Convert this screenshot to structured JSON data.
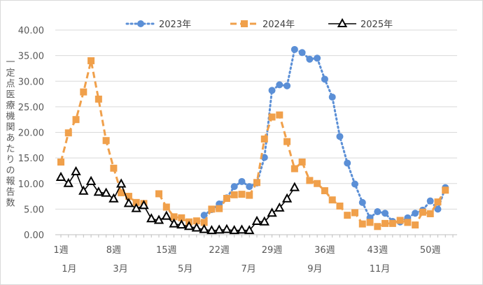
{
  "chart_data": {
    "type": "line",
    "title": "",
    "ylabel": "一定点医療機関あたりの報告数",
    "xlabel": "",
    "ylim": [
      0,
      40
    ],
    "yticks": [
      "0.00",
      "5.00",
      "10.00",
      "15.00",
      "20.00",
      "25.00",
      "30.00",
      "35.00",
      "40.00"
    ],
    "ytick_values": [
      0,
      5,
      10,
      15,
      20,
      25,
      30,
      35,
      40
    ],
    "x_range": [
      1,
      53
    ],
    "week_ticks": [
      {
        "week": 1,
        "label": "1週"
      },
      {
        "week": 8,
        "label": "8週"
      },
      {
        "week": 15,
        "label": "15週"
      },
      {
        "week": 22,
        "label": "22週"
      },
      {
        "week": 29,
        "label": "29週"
      },
      {
        "week": 36,
        "label": "36週"
      },
      {
        "week": 43,
        "label": "43週"
      },
      {
        "week": 50,
        "label": "50週"
      }
    ],
    "month_labels": [
      {
        "week": 2.1,
        "label": "1月"
      },
      {
        "week": 8.9,
        "label": "3月"
      },
      {
        "week": 17.5,
        "label": "5月"
      },
      {
        "week": 25.9,
        "label": "7月"
      },
      {
        "week": 34.7,
        "label": "9月"
      },
      {
        "week": 43.3,
        "label": "11月"
      }
    ],
    "legend_position": "top",
    "series": [
      {
        "name": "2023年",
        "color": "#5B8FD6",
        "style": "dotted",
        "marker": "circle",
        "values": [
          null,
          null,
          null,
          null,
          null,
          null,
          null,
          null,
          null,
          null,
          null,
          null,
          null,
          null,
          null,
          null,
          null,
          null,
          null,
          3.8,
          4.9,
          6.0,
          7.2,
          9.4,
          10.4,
          9.4,
          10.1,
          15.1,
          28.2,
          29.3,
          29.1,
          36.2,
          35.6,
          34.3,
          34.5,
          30.4,
          26.9,
          19.2,
          14.0,
          9.9,
          6.3,
          3.3,
          4.5,
          4.2,
          2.6,
          2.5,
          3.3,
          4.2,
          4.8,
          6.6,
          5.0,
          9.2
        ]
      },
      {
        "name": "2024年",
        "color": "#F0A04B",
        "style": "dashed",
        "marker": "square",
        "values": [
          14.2,
          19.9,
          22.5,
          27.9,
          34.0,
          26.5,
          18.4,
          13.0,
          8.2,
          7.5,
          6.3,
          6.1,
          null,
          8.0,
          5.4,
          3.5,
          3.3,
          2.5,
          2.7,
          2.4,
          5.0,
          5.1,
          7.1,
          7.8,
          7.9,
          7.7,
          10.2,
          18.7,
          23.0,
          23.4,
          18.2,
          12.9,
          14.2,
          10.6,
          10.0,
          8.6,
          6.8,
          5.6,
          3.8,
          4.3,
          2.1,
          2.4,
          1.6,
          2.2,
          2.2,
          2.8,
          2.4,
          1.9,
          4.4,
          4.1,
          6.4,
          8.7
        ]
      },
      {
        "name": "2025年",
        "color": "#000000",
        "style": "solid",
        "marker": "triangle",
        "values": [
          11.2,
          10.0,
          12.3,
          8.5,
          10.4,
          8.3,
          8.1,
          7.0,
          9.9,
          6.1,
          5.1,
          5.7,
          3.1,
          2.8,
          3.6,
          2.1,
          1.9,
          1.6,
          1.3,
          1.0,
          0.8,
          0.9,
          1.0,
          0.8,
          0.9,
          0.8,
          2.6,
          2.5,
          4.2,
          5.2,
          7.0,
          9.2
        ]
      }
    ]
  }
}
